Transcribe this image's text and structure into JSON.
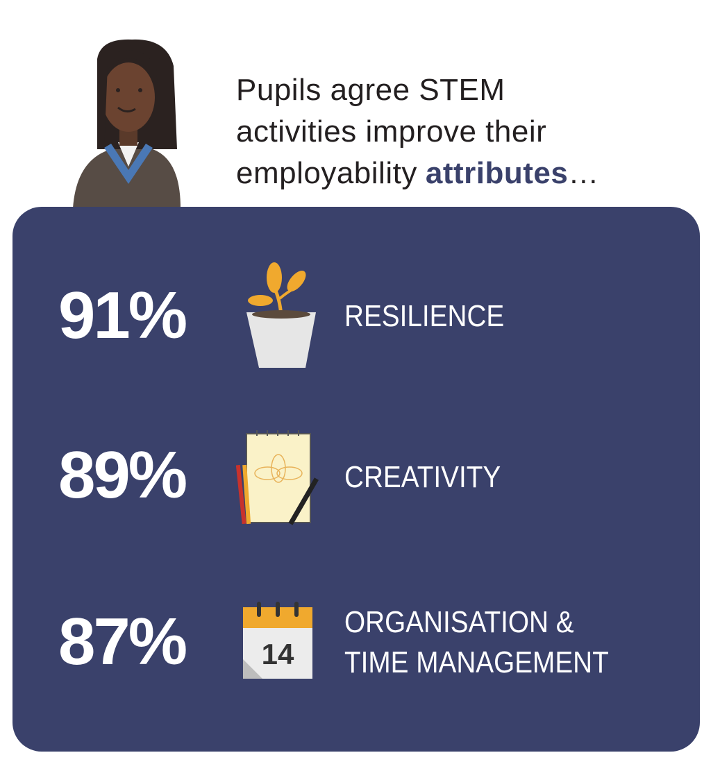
{
  "heading": {
    "lines": [
      "Pupils agree STEM",
      "activities improve their"
    ],
    "last_line": "employability",
    "emphasis": "attributes",
    "ending": "…"
  },
  "items": [
    {
      "percent": "91%",
      "label": [
        "RESILIENCE"
      ]
    },
    {
      "percent": "89%",
      "label": [
        "CREATIVITY"
      ]
    },
    {
      "percent": "87%",
      "label": [
        "ORGANISATION &",
        "TIME MANAGEMENT"
      ]
    }
  ]
}
